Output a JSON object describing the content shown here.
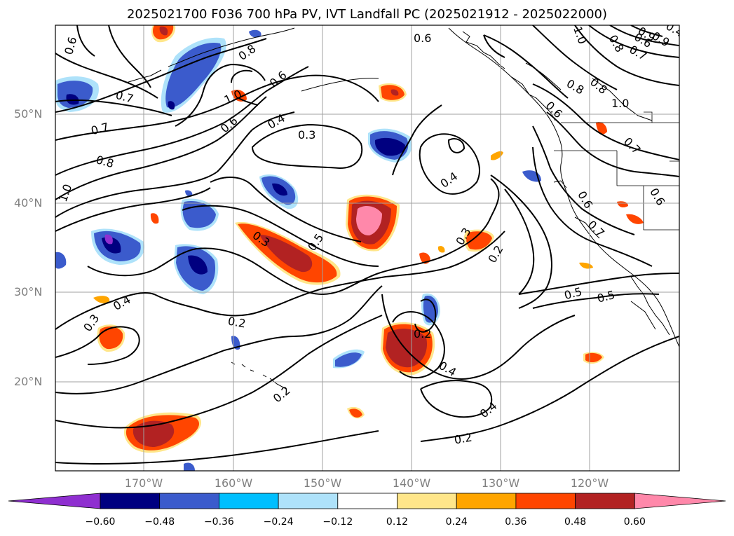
{
  "title": "2025021700 F036 700 hPa PV, IVT Landfall PC (2025021912 - 2025022000)",
  "lat_labels": [
    "50°N",
    "40°N",
    "30°N",
    "20°N"
  ],
  "lon_labels": [
    "170°W",
    "160°W",
    "150°W",
    "140°W",
    "130°W",
    "120°W"
  ],
  "contour_labels": [
    "0.6",
    "0.8",
    "0.6",
    "0.7",
    "1.0",
    "0.9",
    "0.8",
    "0.7",
    "0.6",
    "0.7",
    "0.8",
    "1.0",
    "1.0",
    "0.6",
    "0.4",
    "0.3",
    "0.6",
    "0.3",
    "0.2",
    "0.5",
    "0.4",
    "0.3",
    "0.4",
    "0.2",
    "0.2",
    "0.4",
    "0.4",
    "0.2",
    "0.5",
    "0.6",
    "0.7",
    "0.8",
    "1.0",
    "0.6",
    "0.3",
    "0.5",
    "0.6",
    "0.7",
    "0.8",
    "0.9",
    "0.2",
    "0.4"
  ],
  "colorbar": {
    "tick_labels": [
      "−0.60",
      "−0.48",
      "−0.36",
      "−0.24",
      "−0.12",
      "0.12",
      "0.24",
      "0.36",
      "0.48",
      "0.60"
    ],
    "colors": {
      "below_min": "#8f2fd0",
      "b1": "#000080",
      "b2": "#3b5bcc",
      "b3": "#00bfff",
      "b4": "#aee2fa",
      "b5": "#ffffff",
      "b6": "#ffe68a",
      "b7": "#ffa500",
      "b8": "#ff4500",
      "b9": "#b22222",
      "above_max": "#ff88aa"
    }
  }
}
